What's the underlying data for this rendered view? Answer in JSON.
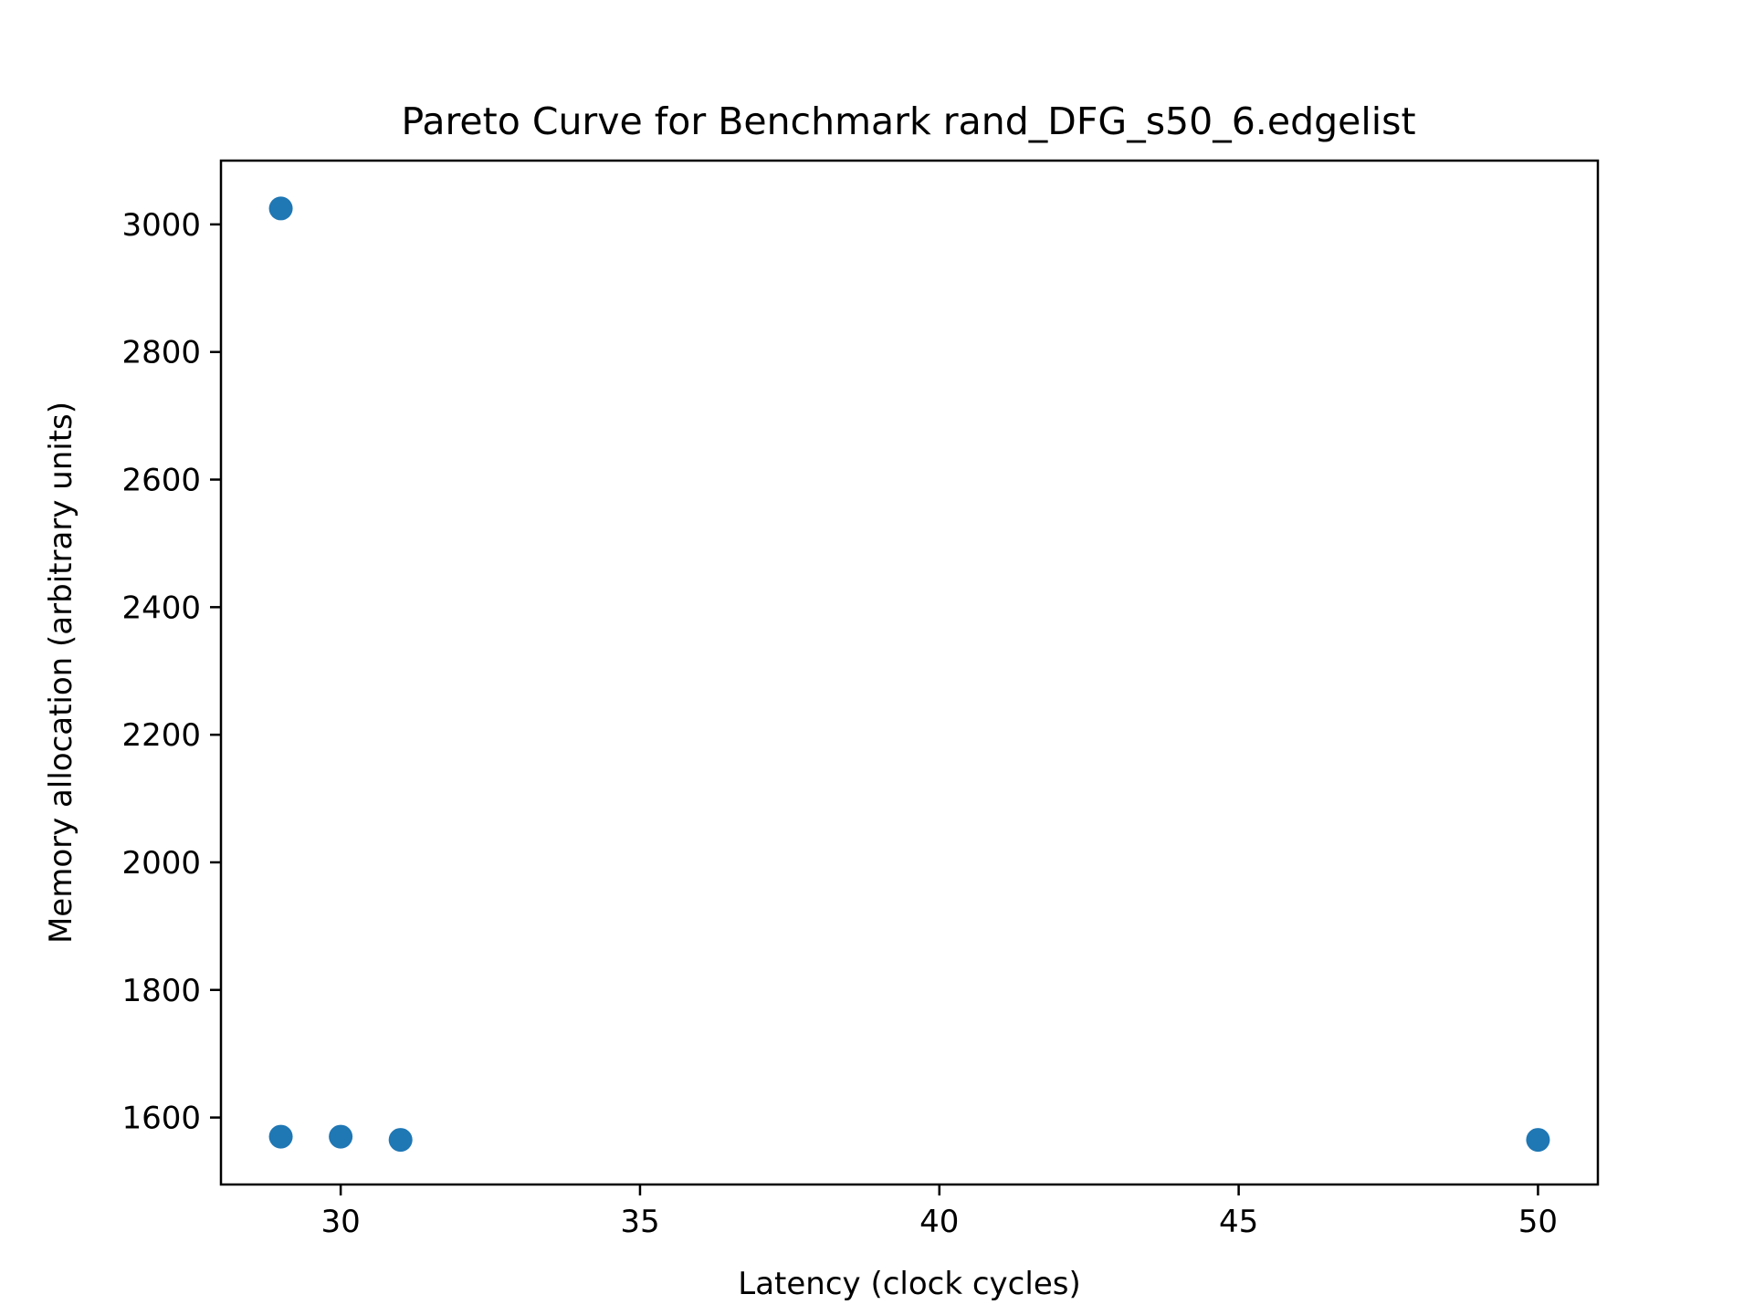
{
  "chart_data": {
    "type": "scatter",
    "title": "Pareto Curve for Benchmark rand_DFG_s50_6.edgelist",
    "xlabel": "Latency (clock cycles)",
    "ylabel": "Memory allocation (arbitrary units)",
    "xlim": [
      28,
      51
    ],
    "ylim": [
      1495,
      3100
    ],
    "x_ticks": [
      30,
      35,
      40,
      45,
      50
    ],
    "y_ticks": [
      1600,
      1800,
      2000,
      2200,
      2400,
      2600,
      2800,
      3000
    ],
    "x_tick_labels": [
      "30",
      "35",
      "40",
      "45",
      "50"
    ],
    "y_tick_labels": [
      "1600",
      "1800",
      "2000",
      "2200",
      "2400",
      "2600",
      "2800",
      "3000"
    ],
    "grid": false,
    "legend": false,
    "marker_color": "#1f77b4",
    "series": [
      {
        "points": [
          {
            "x": 29,
            "y": 3025
          },
          {
            "x": 29,
            "y": 1570
          },
          {
            "x": 30,
            "y": 1570
          },
          {
            "x": 31,
            "y": 1565
          },
          {
            "x": 50,
            "y": 1565
          }
        ]
      }
    ]
  }
}
